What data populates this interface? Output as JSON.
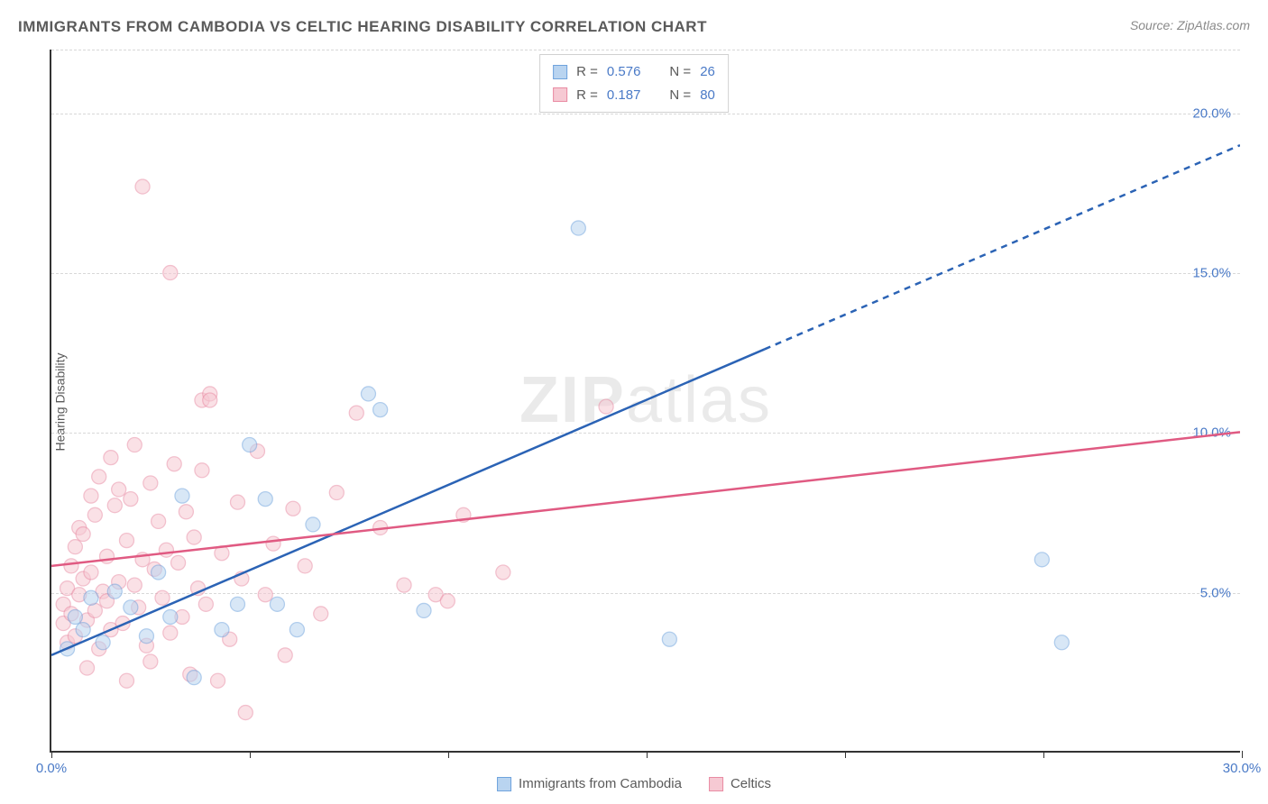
{
  "title": "IMMIGRANTS FROM CAMBODIA VS CELTIC HEARING DISABILITY CORRELATION CHART",
  "source": "Source: ZipAtlas.com",
  "watermark": "ZIPatlas",
  "chart": {
    "type": "scatter",
    "xlabel": "",
    "ylabel": "Hearing Disability",
    "xlim": [
      0,
      30
    ],
    "ylim": [
      0,
      22
    ],
    "x_ticks": [
      0,
      5,
      10,
      15,
      20,
      25,
      30
    ],
    "x_tick_labels": {
      "0": "0.0%",
      "30": "30.0%"
    },
    "y_gridlines": [
      5,
      10,
      15,
      20
    ],
    "y_tick_labels": {
      "5": "5.0%",
      "10": "10.0%",
      "15": "15.0%",
      "20": "20.0%"
    },
    "grid_color": "#d8d8d8",
    "background_color": "#ffffff",
    "axis_color": "#333333",
    "tick_label_color": "#4a7ac7",
    "axis_label_color": "#5a5a5a",
    "marker_radius": 8,
    "marker_opacity": 0.55,
    "series": [
      {
        "name": "Immigrants from Cambodia",
        "color_fill": "#b9d4f0",
        "color_stroke": "#6fa3dd",
        "r": 0.576,
        "n": 26,
        "regression": {
          "x1": 0,
          "y1": 3.0,
          "x2_solid": 18,
          "y2_solid": 12.6,
          "x2_dash": 30,
          "y2_dash": 19.0,
          "stroke": "#2b63b5",
          "width": 2.5
        },
        "points": [
          [
            0.4,
            3.2
          ],
          [
            0.6,
            4.2
          ],
          [
            0.8,
            3.8
          ],
          [
            1.0,
            4.8
          ],
          [
            1.3,
            3.4
          ],
          [
            1.6,
            5.0
          ],
          [
            2.0,
            4.5
          ],
          [
            2.4,
            3.6
          ],
          [
            2.7,
            5.6
          ],
          [
            3.0,
            4.2
          ],
          [
            3.3,
            8.0
          ],
          [
            3.6,
            2.3
          ],
          [
            4.3,
            3.8
          ],
          [
            4.7,
            4.6
          ],
          [
            5.0,
            9.6
          ],
          [
            5.4,
            7.9
          ],
          [
            5.7,
            4.6
          ],
          [
            6.2,
            3.8
          ],
          [
            6.6,
            7.1
          ],
          [
            8.0,
            11.2
          ],
          [
            8.3,
            10.7
          ],
          [
            9.4,
            4.4
          ],
          [
            13.3,
            16.4
          ],
          [
            15.6,
            3.5
          ],
          [
            25.0,
            6.0
          ],
          [
            25.5,
            3.4
          ]
        ]
      },
      {
        "name": "Celtics",
        "color_fill": "#f6c9d3",
        "color_stroke": "#e98ba3",
        "r": 0.187,
        "n": 80,
        "regression": {
          "x1": 0,
          "y1": 5.8,
          "x2_solid": 30,
          "y2_solid": 10.0,
          "stroke": "#e05a82",
          "width": 2.5
        },
        "points": [
          [
            0.3,
            4.0
          ],
          [
            0.3,
            4.6
          ],
          [
            0.4,
            3.4
          ],
          [
            0.4,
            5.1
          ],
          [
            0.5,
            5.8
          ],
          [
            0.5,
            4.3
          ],
          [
            0.6,
            6.4
          ],
          [
            0.6,
            3.6
          ],
          [
            0.7,
            7.0
          ],
          [
            0.7,
            4.9
          ],
          [
            0.8,
            5.4
          ],
          [
            0.8,
            6.8
          ],
          [
            0.9,
            4.1
          ],
          [
            0.9,
            2.6
          ],
          [
            1.0,
            8.0
          ],
          [
            1.0,
            5.6
          ],
          [
            1.1,
            4.4
          ],
          [
            1.1,
            7.4
          ],
          [
            1.2,
            3.2
          ],
          [
            1.2,
            8.6
          ],
          [
            1.3,
            5.0
          ],
          [
            1.4,
            6.1
          ],
          [
            1.4,
            4.7
          ],
          [
            1.5,
            9.2
          ],
          [
            1.5,
            3.8
          ],
          [
            1.6,
            7.7
          ],
          [
            1.7,
            5.3
          ],
          [
            1.7,
            8.2
          ],
          [
            1.8,
            4.0
          ],
          [
            1.9,
            6.6
          ],
          [
            1.9,
            2.2
          ],
          [
            2.0,
            7.9
          ],
          [
            2.1,
            5.2
          ],
          [
            2.1,
            9.6
          ],
          [
            2.2,
            4.5
          ],
          [
            2.3,
            6.0
          ],
          [
            2.3,
            17.7
          ],
          [
            2.4,
            3.3
          ],
          [
            2.5,
            8.4
          ],
          [
            2.5,
            2.8
          ],
          [
            2.6,
            5.7
          ],
          [
            2.7,
            7.2
          ],
          [
            2.8,
            4.8
          ],
          [
            2.9,
            6.3
          ],
          [
            3.0,
            3.7
          ],
          [
            3.0,
            15.0
          ],
          [
            3.1,
            9.0
          ],
          [
            3.2,
            5.9
          ],
          [
            3.3,
            4.2
          ],
          [
            3.4,
            7.5
          ],
          [
            3.5,
            2.4
          ],
          [
            3.6,
            6.7
          ],
          [
            3.7,
            5.1
          ],
          [
            3.8,
            8.8
          ],
          [
            3.8,
            11.0
          ],
          [
            3.9,
            4.6
          ],
          [
            4.0,
            11.2
          ],
          [
            4.0,
            11.0
          ],
          [
            4.2,
            2.2
          ],
          [
            4.3,
            6.2
          ],
          [
            4.5,
            3.5
          ],
          [
            4.7,
            7.8
          ],
          [
            4.8,
            5.4
          ],
          [
            4.9,
            1.2
          ],
          [
            5.2,
            9.4
          ],
          [
            5.4,
            4.9
          ],
          [
            5.6,
            6.5
          ],
          [
            5.9,
            3.0
          ],
          [
            6.1,
            7.6
          ],
          [
            6.4,
            5.8
          ],
          [
            6.8,
            4.3
          ],
          [
            7.2,
            8.1
          ],
          [
            7.7,
            10.6
          ],
          [
            8.3,
            7.0
          ],
          [
            8.9,
            5.2
          ],
          [
            9.7,
            4.9
          ],
          [
            10.0,
            4.7
          ],
          [
            10.4,
            7.4
          ],
          [
            11.4,
            5.6
          ],
          [
            14.0,
            10.8
          ]
        ]
      }
    ]
  },
  "legend_top": [
    {
      "swatch_fill": "#b9d4f0",
      "swatch_stroke": "#6fa3dd",
      "r_label": "R =",
      "r_value": "0.576",
      "n_label": "N =",
      "n_value": "26"
    },
    {
      "swatch_fill": "#f6c9d3",
      "swatch_stroke": "#e98ba3",
      "r_label": "R =",
      "r_value": "0.187",
      "n_label": "N =",
      "n_value": "80"
    }
  ],
  "legend_bottom": [
    {
      "swatch_fill": "#b9d4f0",
      "swatch_stroke": "#6fa3dd",
      "label": "Immigrants from Cambodia"
    },
    {
      "swatch_fill": "#f6c9d3",
      "swatch_stroke": "#e98ba3",
      "label": "Celtics"
    }
  ]
}
